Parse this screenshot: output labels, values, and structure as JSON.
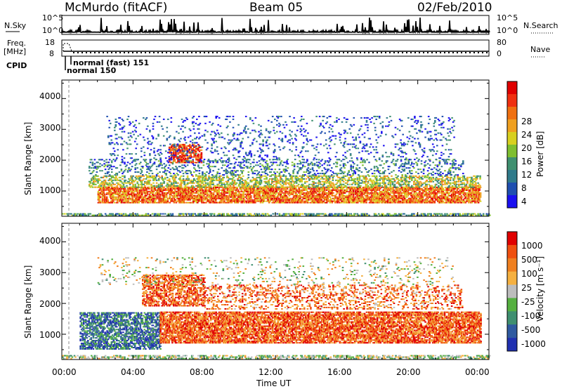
{
  "header": {
    "station": "McMurdo (fitACF)",
    "beam": "Beam 05",
    "date": "02/Feb/2010"
  },
  "top_panels": {
    "nsky_label": "N.Sky",
    "nsearch_label": "N.Search",
    "freq_label_1": "Freq.",
    "freq_label_2": "[MHz]",
    "nave_label": "Nave",
    "cpid_label": "CPID",
    "nsky_ticks": [
      "10^5",
      "10^0"
    ],
    "nsearch_ticks": [
      "10^5",
      "10^0"
    ],
    "freq_ticks": [
      "18",
      "8"
    ],
    "nave_ticks": [
      "80",
      "0"
    ],
    "cpid_modes": [
      "normal (fast) 151",
      "normal 150"
    ]
  },
  "chart_data": [
    {
      "type": "heatmap",
      "name": "power",
      "ylabel": "Slant Range [km]",
      "xlabel": "",
      "ylim": [
        180,
        4600
      ],
      "yticks": [
        "1000",
        "2000",
        "3000",
        "4000"
      ],
      "colorbar_label": "Power [dB]",
      "colorbar_ticks": [
        "28",
        "24",
        "20",
        "16",
        "12",
        "8",
        "4"
      ],
      "colorbar_colors": [
        "#1a10f0",
        "#1f4fb0",
        "#2f7a8a",
        "#3f9070",
        "#7fbf30",
        "#d8d020",
        "#f0a020",
        "#f07010",
        "#f03010",
        "#e00000"
      ],
      "echo_bands": [
        {
          "t0": 0.0,
          "t1": 24.0,
          "r0": 190,
          "r1": 280,
          "level": 0.35,
          "density": 0.55
        },
        {
          "t0": 2.0,
          "t1": 23.5,
          "r0": 600,
          "r1": 1100,
          "level": 0.75,
          "density": 0.7
        },
        {
          "t0": 1.5,
          "t1": 23.5,
          "r0": 1100,
          "r1": 1500,
          "level": 0.5,
          "density": 0.45
        },
        {
          "t0": 6.0,
          "t1": 7.8,
          "r0": 1900,
          "r1": 2500,
          "level": 0.85,
          "density": 0.6
        },
        {
          "t0": 1.5,
          "t1": 22.5,
          "r0": 1500,
          "r1": 2000,
          "level": 0.25,
          "density": 0.2
        },
        {
          "t0": 2.5,
          "t1": 22.0,
          "r0": 2000,
          "r1": 3400,
          "level": 0.15,
          "density": 0.09
        }
      ]
    },
    {
      "type": "heatmap",
      "name": "velocity",
      "ylabel": "Slant Range [km]",
      "xlabel": "Time UT",
      "ylim": [
        180,
        4600
      ],
      "yticks": [
        "1000",
        "2000",
        "3000",
        "4000"
      ],
      "xticks": [
        "00:00",
        "04:00",
        "08:00",
        "12:00",
        "16:00",
        "20:00",
        "00:00"
      ],
      "colorbar_label": "Velocity [m s⁻¹]",
      "colorbar_ticks": [
        "1000",
        "500",
        "100",
        "25",
        "-25",
        "-100",
        "-500",
        "-1000"
      ],
      "colorbar_colors": [
        "#2030b0",
        "#2f5aa0",
        "#3f8f70",
        "#55b040",
        "#bdbdbd",
        "#f5b040",
        "#f08020",
        "#f05010",
        "#e00000"
      ],
      "echo_bands": [
        {
          "t0": 0.0,
          "t1": 24.0,
          "r0": 190,
          "r1": 300,
          "level": 0.45,
          "density": 0.45
        },
        {
          "t0": 1.0,
          "t1": 5.5,
          "r0": 500,
          "r1": 1700,
          "level": 0.2,
          "density": 0.6
        },
        {
          "t0": 5.5,
          "t1": 23.5,
          "r0": 700,
          "r1": 1700,
          "level": 0.8,
          "density": 0.7
        },
        {
          "t0": 4.5,
          "t1": 8.0,
          "r0": 1900,
          "r1": 2900,
          "level": 0.8,
          "density": 0.55
        },
        {
          "t0": 8.0,
          "t1": 22.5,
          "r0": 1800,
          "r1": 2600,
          "level": 0.75,
          "density": 0.25
        },
        {
          "t0": 2.0,
          "t1": 22.0,
          "r0": 2600,
          "r1": 3500,
          "level": 0.5,
          "density": 0.08
        }
      ]
    }
  ]
}
